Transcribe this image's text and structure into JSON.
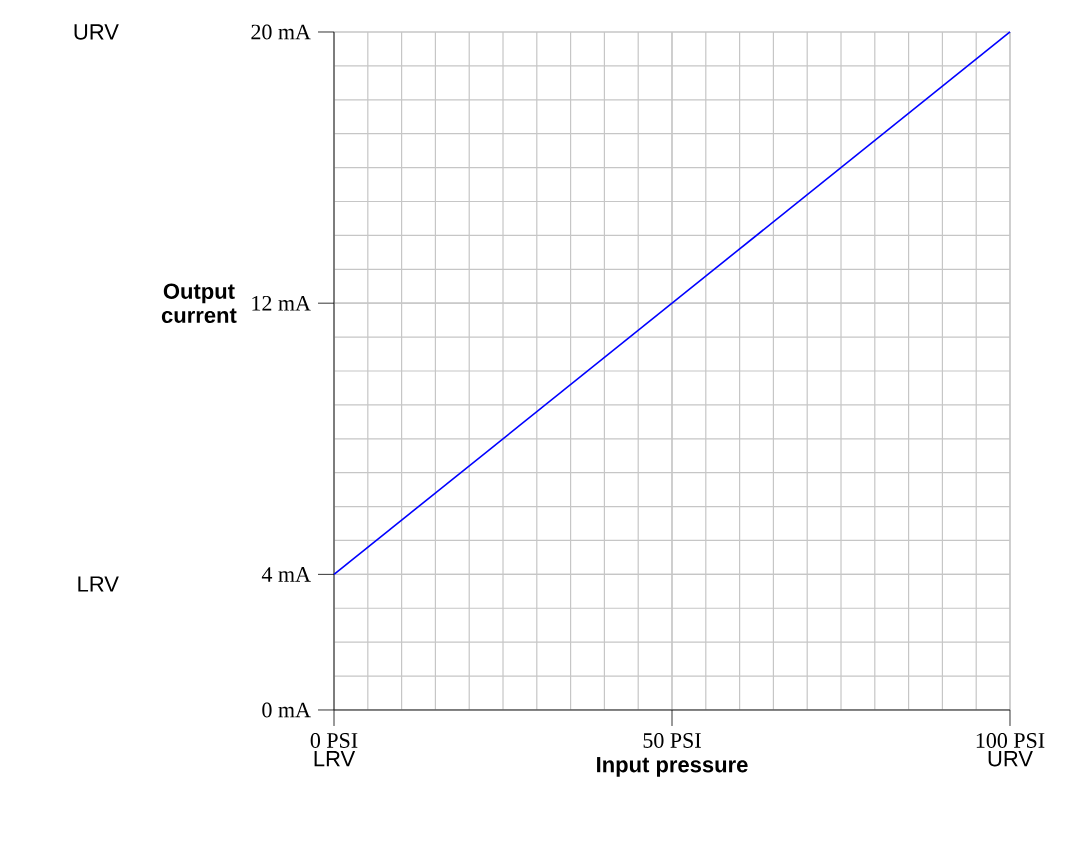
{
  "chart_data": {
    "type": "line",
    "xlabel": "Input pressure",
    "ylabel": "Output current",
    "x": [
      0,
      100
    ],
    "series": [
      {
        "color": "#0000ff",
        "values": [
          4,
          20
        ]
      }
    ],
    "xlim": [
      0,
      100
    ],
    "ylim": [
      0,
      20
    ],
    "xticks": [
      {
        "value": 0,
        "label": "0 PSI"
      },
      {
        "value": 50,
        "label": "50 PSI"
      },
      {
        "value": 100,
        "label": "100 PSI"
      }
    ],
    "yticks": [
      {
        "value": 0,
        "label": "0 mA"
      },
      {
        "value": 4,
        "label": "4 mA"
      },
      {
        "value": 12,
        "label": "12 mA"
      },
      {
        "value": 20,
        "label": "20 mA"
      }
    ],
    "grid": true,
    "marker": "none",
    "line_style": "solid",
    "annotations": [
      "URV",
      "LRV",
      "LRV",
      "URV"
    ]
  }
}
